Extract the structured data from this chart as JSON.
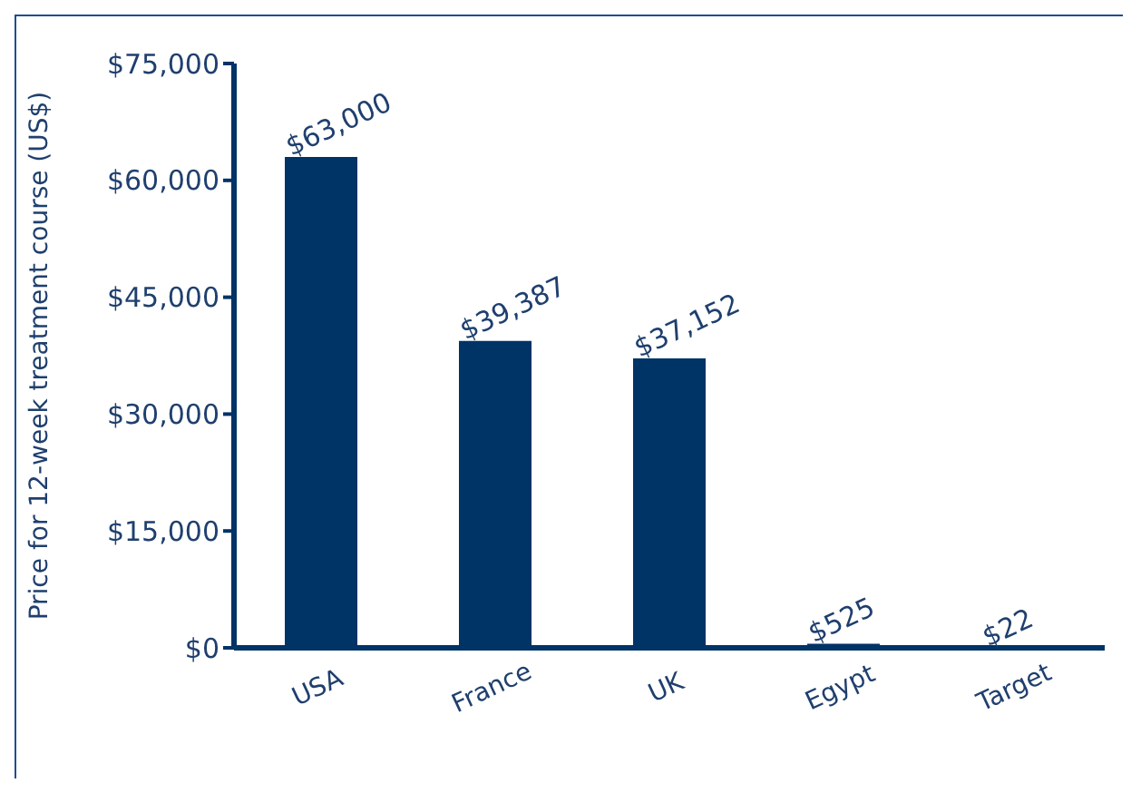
{
  "chart_data": {
    "type": "bar",
    "categories": [
      "USA",
      "France",
      "UK",
      "Egypt",
      "Target"
    ],
    "values": [
      63000,
      39387,
      37152,
      525,
      22
    ],
    "value_labels": [
      "$63,000",
      "$39,387",
      "$37,152",
      "$525",
      "$22"
    ],
    "color": "#003366",
    "ylabel": "Price for 12-week treatment course (US$)",
    "ylim": [
      0,
      75000
    ],
    "yticks": [
      {
        "value": 0,
        "label": "$0"
      },
      {
        "value": 15000,
        "label": "$15,000"
      },
      {
        "value": 30000,
        "label": "$30,000"
      },
      {
        "value": 45000,
        "label": "$45,000"
      },
      {
        "value": 60000,
        "label": "$60,000"
      },
      {
        "value": 75000,
        "label": "$75,000"
      }
    ],
    "grid": false
  }
}
